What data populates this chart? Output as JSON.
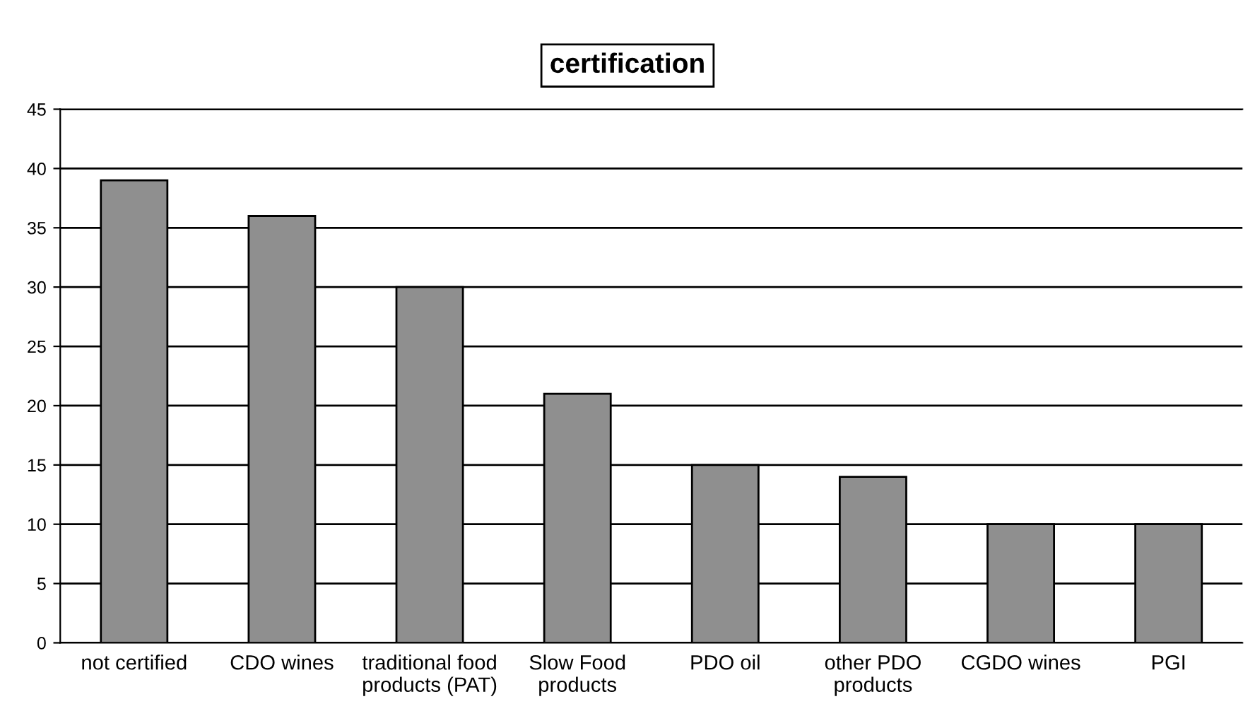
{
  "chart_data": {
    "type": "bar",
    "title": "certification",
    "categories": [
      "not certified",
      "CDO wines",
      "traditional food\nproducts (PAT)",
      "Slow Food\nproducts",
      "PDO oil",
      "other PDO\nproducts",
      "CGDO wines",
      "PGI"
    ],
    "values": [
      39,
      36,
      30,
      21,
      15,
      14,
      10,
      10
    ],
    "color": "#8f8f8f",
    "ylim": [
      0,
      45
    ],
    "yticks": [
      0,
      5,
      10,
      15,
      20,
      25,
      30,
      35,
      40,
      45
    ],
    "grid": "y",
    "legend": false
  }
}
